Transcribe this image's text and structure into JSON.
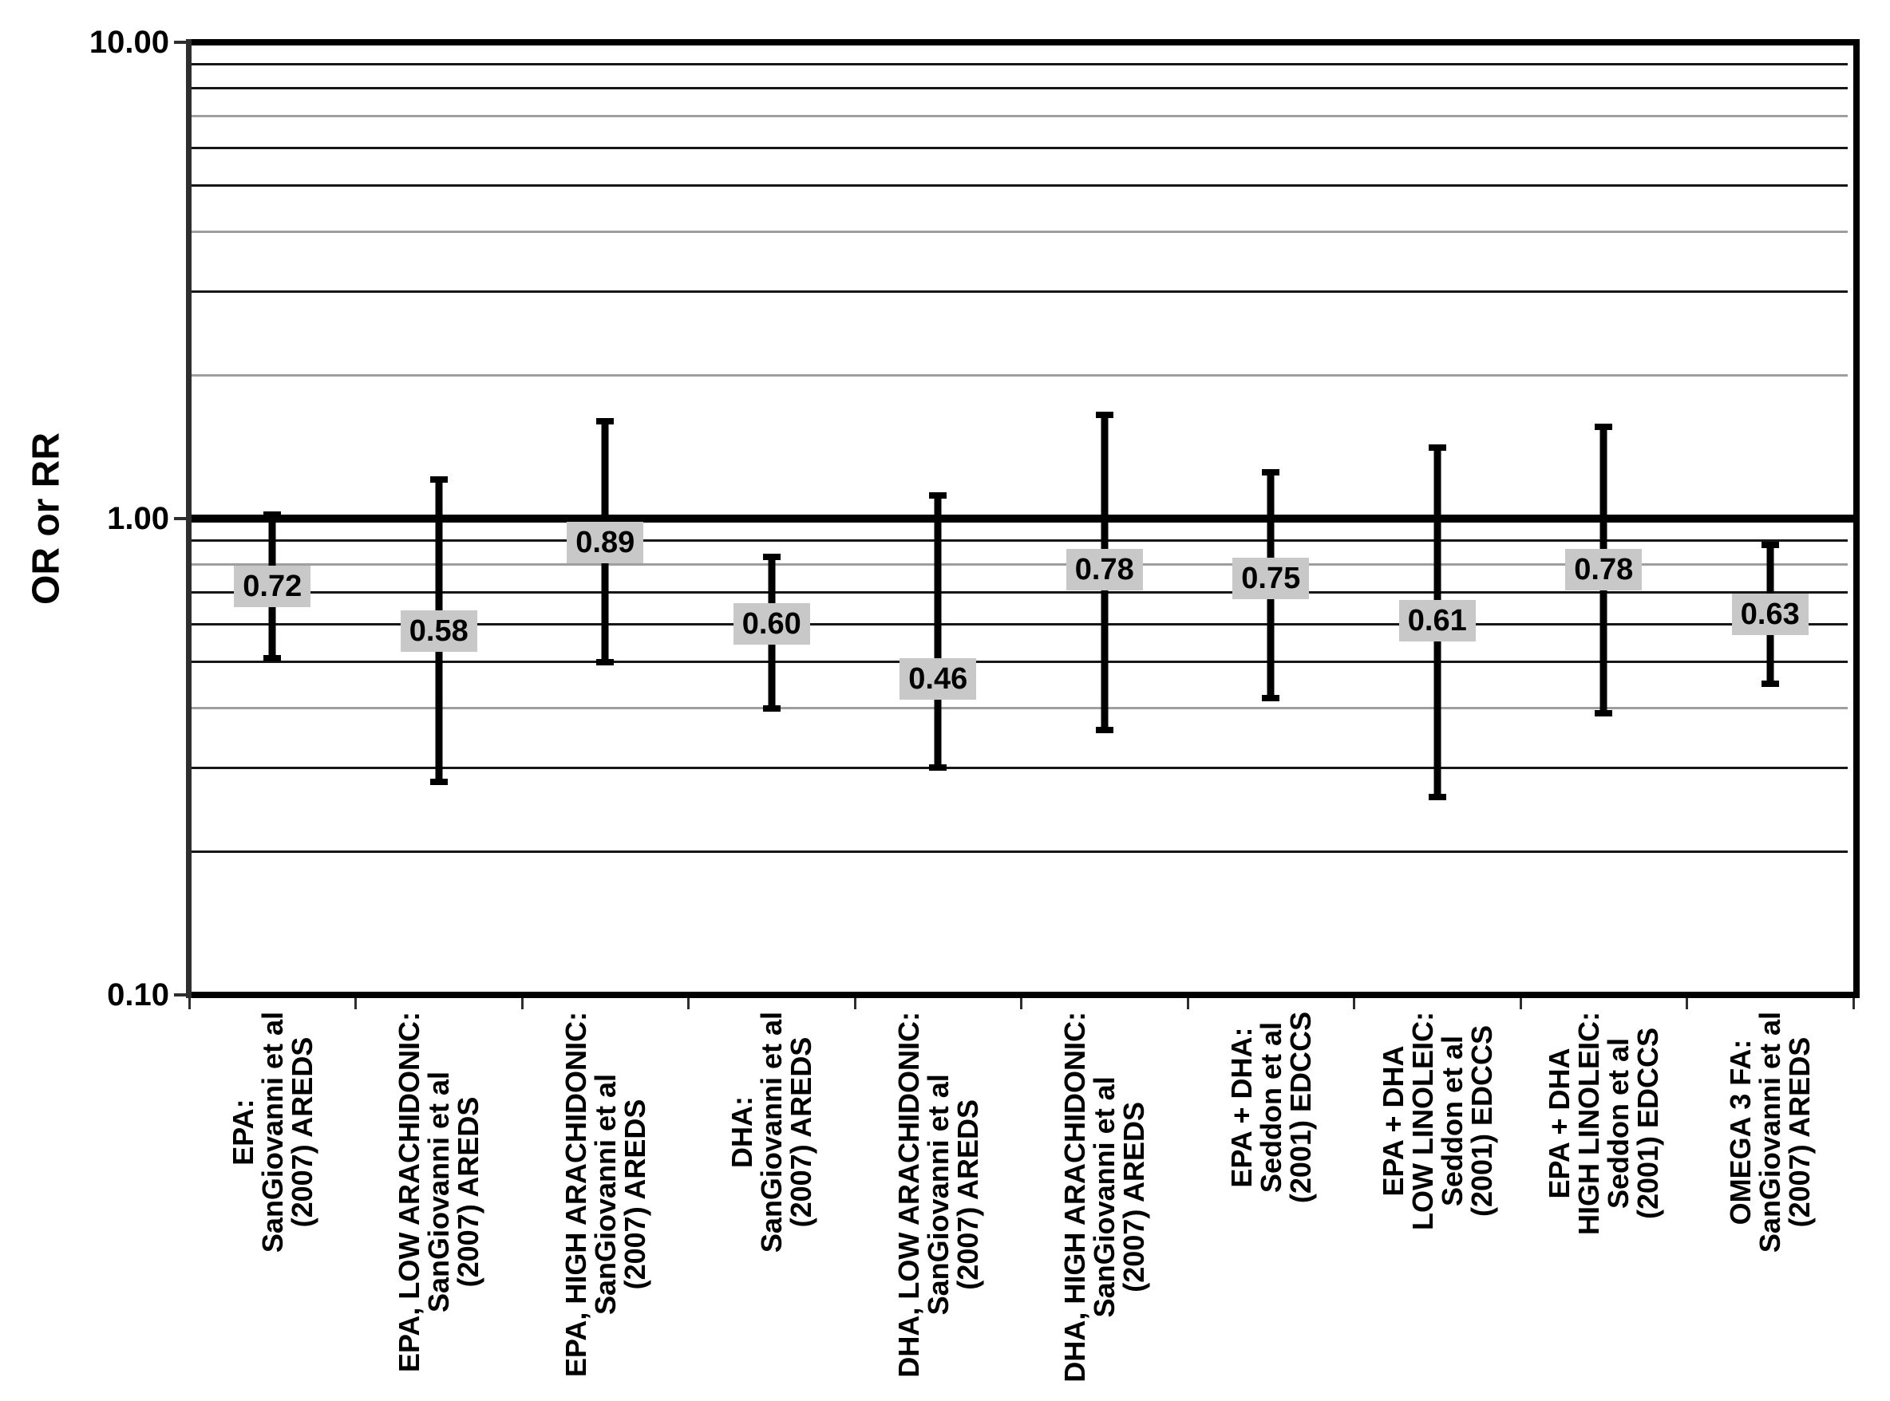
{
  "chart_data": {
    "type": "forest-errorbar",
    "title": "",
    "ylabel": "OR or RR",
    "y_scale": "log",
    "ylim": [
      0.1,
      10.0
    ],
    "grid": "on",
    "reference_line": 1.0,
    "y_major_ticks": [
      {
        "value": 10,
        "label": "10.00"
      },
      {
        "value": 1,
        "label": "1.00"
      },
      {
        "value": 0.1,
        "label": "0.10"
      }
    ],
    "gridlines_minor_black": [
      9,
      8,
      6,
      5,
      3,
      0.9,
      0.7,
      0.6,
      0.5,
      0.3,
      0.2
    ],
    "gridlines_minor_gray": [
      7,
      4,
      2,
      0.8,
      0.4
    ],
    "series": [
      {
        "label_lines": [
          "EPA:",
          "SanGiovanni et al",
          "(2007) AREDS"
        ],
        "value": 0.72,
        "value_label": "0.72",
        "ci_low": 0.51,
        "ci_high": 1.02
      },
      {
        "label_lines": [
          "EPA, LOW ARACHIDONIC:",
          "SanGiovanni et al",
          "(2007) AREDS"
        ],
        "value": 0.58,
        "value_label": "0.58",
        "ci_low": 0.28,
        "ci_high": 1.21
      },
      {
        "label_lines": [
          "EPA, HIGH ARACHIDONIC:",
          "SanGiovanni et al",
          "(2007) AREDS"
        ],
        "value": 0.89,
        "value_label": "0.89",
        "ci_low": 0.5,
        "ci_high": 1.6
      },
      {
        "label_lines": [
          "DHA:",
          "SanGiovanni et al",
          "(2007) AREDS"
        ],
        "value": 0.6,
        "value_label": "0.60",
        "ci_low": 0.4,
        "ci_high": 0.83
      },
      {
        "label_lines": [
          "DHA, LOW ARACHIDONIC:",
          "SanGiovanni et al",
          "(2007) AREDS"
        ],
        "value": 0.46,
        "value_label": "0.46",
        "ci_low": 0.3,
        "ci_high": 1.12
      },
      {
        "label_lines": [
          "DHA, HIGH ARACHIDONIC:",
          "SanGiovanni et al",
          "(2007) AREDS"
        ],
        "value": 0.78,
        "value_label": "0.78",
        "ci_low": 0.36,
        "ci_high": 1.65
      },
      {
        "label_lines": [
          "EPA + DHA:",
          "Seddon et al",
          "(2001) EDCCS"
        ],
        "value": 0.75,
        "value_label": "0.75",
        "ci_low": 0.42,
        "ci_high": 1.25
      },
      {
        "label_lines": [
          "EPA + DHA",
          "LOW LINOLEIC:",
          "Seddon et al",
          "(2001) EDCCS"
        ],
        "value": 0.61,
        "value_label": "0.61",
        "ci_low": 0.26,
        "ci_high": 1.41
      },
      {
        "label_lines": [
          "EPA + DHA",
          "HIGH LINOLEIC:",
          "Seddon et al",
          "(2001) EDCCS"
        ],
        "value": 0.78,
        "value_label": "0.78",
        "ci_low": 0.39,
        "ci_high": 1.56
      },
      {
        "label_lines": [
          "OMEGA 3 FA:",
          "SanGiovanni et al",
          "(2007) AREDS"
        ],
        "value": 0.63,
        "value_label": "0.63",
        "ci_low": 0.45,
        "ci_high": 0.88
      }
    ],
    "colors": {
      "bar": "#000000",
      "value_box_bg": "#c8c8c8",
      "grid_minor": "#161616",
      "grid_gray": "#9e9e9e",
      "frame": "#000000",
      "axis": "#2e2e2e",
      "background": "#ffffff"
    },
    "legend": "none"
  }
}
